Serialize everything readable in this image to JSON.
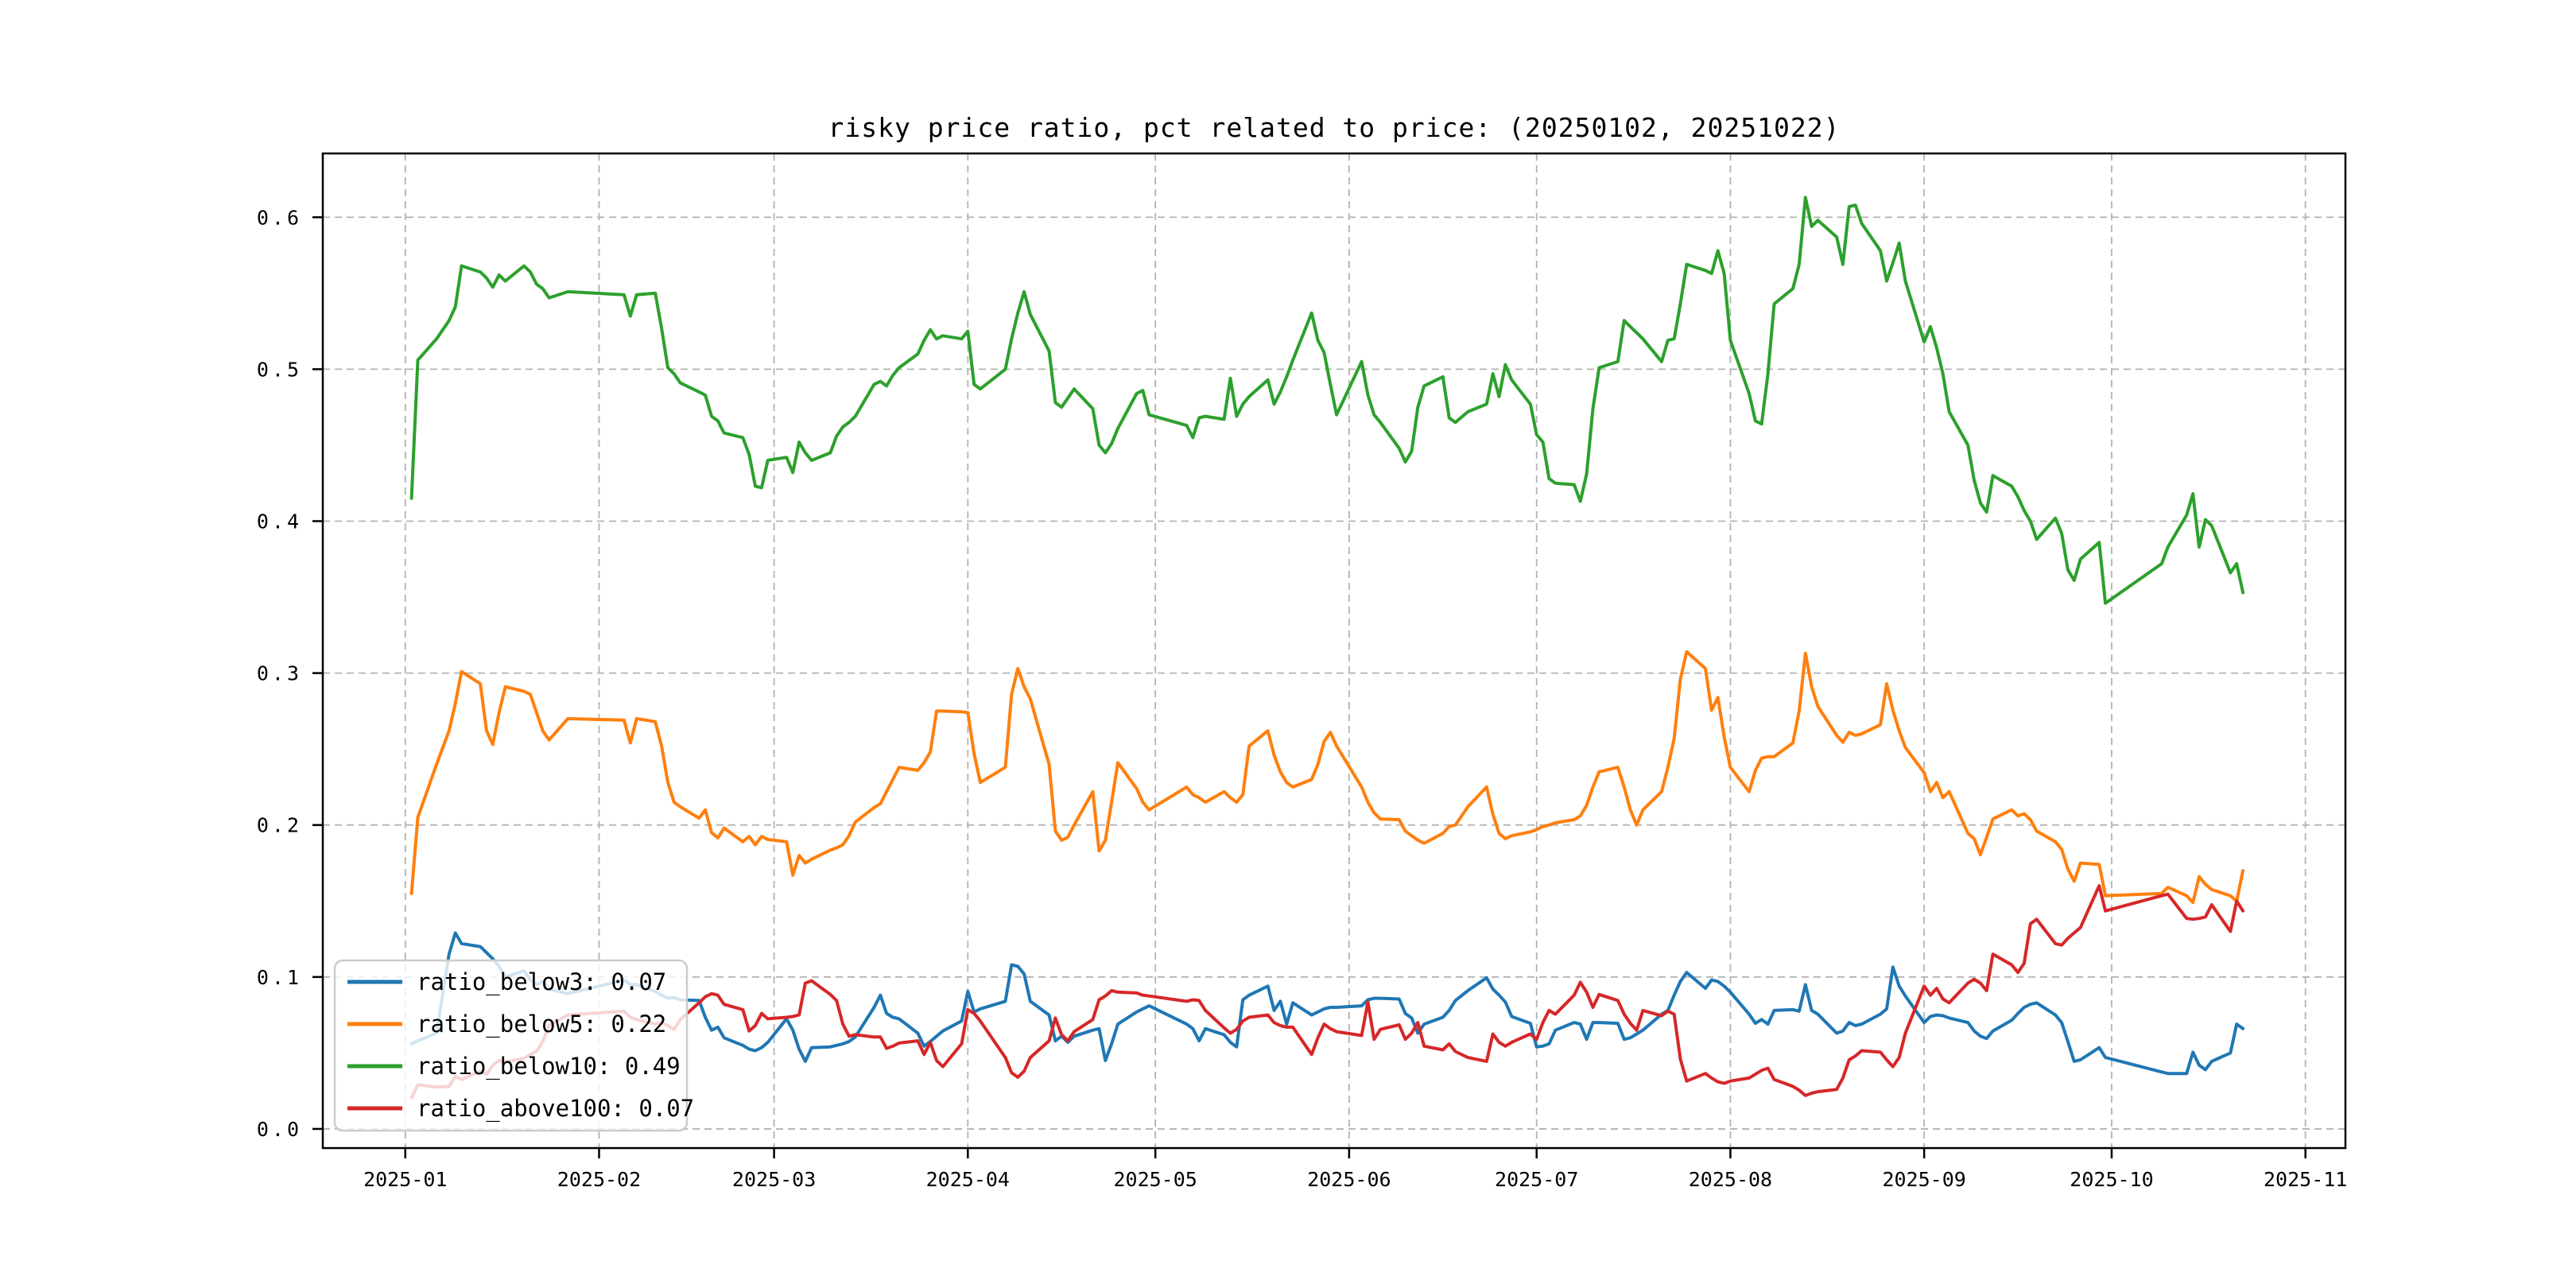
{
  "chart_data": {
    "type": "line",
    "title": "risky price ratio, pct related to price: (20250102, 20251022)",
    "xlabel": "",
    "ylabel": "",
    "grid": true,
    "grid_style": "dashed",
    "legend_position": "lower left",
    "colors": {
      "blue": "#1f77b4",
      "orange": "#ff7f0e",
      "green": "#2ca02c",
      "red": "#d62728",
      "grid": "#b3b3b3",
      "spine": "#000000",
      "legend_border": "#cccccc"
    },
    "x_tick_labels": [
      "2025-01",
      "2025-02",
      "2025-03",
      "2025-04",
      "2025-05",
      "2025-06",
      "2025-07",
      "2025-08",
      "2025-09",
      "2025-10",
      "2025-11"
    ],
    "x_tick_day_offsets": [
      0,
      31,
      59,
      90,
      120,
      151,
      181,
      212,
      243,
      273,
      304
    ],
    "y_tick_labels": [
      "0.0",
      "0.1",
      "0.2",
      "0.3",
      "0.4",
      "0.5",
      "0.6"
    ],
    "y_tick_values": [
      0.0,
      0.1,
      0.2,
      0.3,
      0.4,
      0.5,
      0.6
    ],
    "xlim_day_offsets": [
      -13.2,
      310.4
    ],
    "ylim": [
      -0.0126,
      0.642
    ],
    "x": [
      "01-02",
      "01-03",
      "01-06",
      "01-08",
      "01-09",
      "01-10",
      "01-13",
      "01-14",
      "01-15",
      "01-16",
      "01-17",
      "01-20",
      "01-21",
      "01-22",
      "01-23",
      "01-24",
      "01-27",
      "02-05",
      "02-06",
      "02-07",
      "02-10",
      "02-11",
      "02-12",
      "02-13",
      "02-14",
      "02-17",
      "02-18",
      "02-19",
      "02-20",
      "02-21",
      "02-24",
      "02-25",
      "02-26",
      "02-27",
      "02-28",
      "03-03",
      "03-04",
      "03-05",
      "03-06",
      "03-07",
      "03-10",
      "03-11",
      "03-12",
      "03-13",
      "03-14",
      "03-17",
      "03-18",
      "03-19",
      "03-20",
      "03-21",
      "03-24",
      "03-25",
      "03-26",
      "03-27",
      "03-28",
      "03-31",
      "04-01",
      "04-02",
      "04-03",
      "04-07",
      "04-08",
      "04-09",
      "04-10",
      "04-11",
      "04-14",
      "04-15",
      "04-16",
      "04-17",
      "04-18",
      "04-21",
      "04-22",
      "04-23",
      "04-24",
      "04-25",
      "04-28",
      "04-29",
      "04-30",
      "05-06",
      "05-07",
      "05-08",
      "05-09",
      "05-12",
      "05-13",
      "05-14",
      "05-15",
      "05-16",
      "05-19",
      "05-20",
      "05-21",
      "05-22",
      "05-23",
      "05-26",
      "05-27",
      "05-28",
      "05-29",
      "05-30",
      "06-03",
      "06-04",
      "06-05",
      "06-06",
      "06-09",
      "06-10",
      "06-11",
      "06-12",
      "06-13",
      "06-16",
      "06-17",
      "06-18",
      "06-20",
      "06-23",
      "06-24",
      "06-25",
      "06-26",
      "06-27",
      "06-30",
      "07-01",
      "07-02",
      "07-03",
      "07-04",
      "07-07",
      "07-08",
      "07-09",
      "07-10",
      "07-11",
      "07-14",
      "07-15",
      "07-16",
      "07-17",
      "07-18",
      "07-21",
      "07-22",
      "07-23",
      "07-24",
      "07-25",
      "07-28",
      "07-29",
      "07-30",
      "07-31",
      "08-01",
      "08-04",
      "08-05",
      "08-06",
      "08-07",
      "08-08",
      "08-11",
      "08-12",
      "08-13",
      "08-14",
      "08-15",
      "08-18",
      "08-19",
      "08-20",
      "08-21",
      "08-22",
      "08-25",
      "08-26",
      "08-27",
      "08-28",
      "08-29",
      "09-01",
      "09-02",
      "09-03",
      "09-04",
      "09-05",
      "09-08",
      "09-09",
      "09-10",
      "09-11",
      "09-12",
      "09-15",
      "09-16",
      "09-17",
      "09-18",
      "09-19",
      "09-22",
      "09-23",
      "09-24",
      "09-25",
      "09-26",
      "09-29",
      "09-30",
      "10-09",
      "10-10",
      "10-13",
      "10-14",
      "10-15",
      "10-16",
      "10-17",
      "10-20",
      "10-21",
      "10-22"
    ],
    "series": [
      {
        "name": "ratio_below3",
        "legend_label": "ratio_below3: 0.07",
        "color_key": "blue",
        "values": [
          0.056,
          0.058,
          0.063,
          0.115,
          0.129,
          0.122,
          0.12,
          0.116,
          0.112,
          0.107,
          0.1,
          0.104,
          0.098,
          0.095,
          0.097,
          0.092,
          0.089,
          0.098,
          0.095,
          0.095,
          0.0905,
          0.088,
          0.086,
          0.0865,
          0.085,
          0.0845,
          0.0735,
          0.065,
          0.067,
          0.06,
          0.055,
          0.0525,
          0.0515,
          0.0535,
          0.057,
          0.0725,
          0.065,
          0.0525,
          0.0445,
          0.0535,
          0.054,
          0.055,
          0.056,
          0.0575,
          0.0605,
          0.08,
          0.088,
          0.076,
          0.0735,
          0.0725,
          0.063,
          0.0545,
          0.0575,
          0.061,
          0.0645,
          0.071,
          0.0905,
          0.077,
          0.079,
          0.084,
          0.108,
          0.107,
          0.102,
          0.084,
          0.075,
          0.058,
          0.061,
          0.057,
          0.061,
          0.065,
          0.066,
          0.045,
          0.056,
          0.069,
          0.077,
          0.079,
          0.081,
          0.069,
          0.066,
          0.058,
          0.066,
          0.062,
          0.057,
          0.054,
          0.085,
          0.088,
          0.094,
          0.078,
          0.084,
          0.069,
          0.083,
          0.075,
          0.077,
          0.079,
          0.08,
          0.08,
          0.081,
          0.085,
          0.086,
          0.086,
          0.0855,
          0.076,
          0.073,
          0.063,
          0.069,
          0.0735,
          0.078,
          0.0845,
          0.091,
          0.0995,
          0.092,
          0.088,
          0.0835,
          0.074,
          0.0695,
          0.054,
          0.0545,
          0.056,
          0.065,
          0.07,
          0.069,
          0.059,
          0.07,
          0.07,
          0.0695,
          0.059,
          0.06,
          0.0625,
          0.065,
          0.0755,
          0.078,
          0.088,
          0.097,
          0.103,
          0.0925,
          0.098,
          0.097,
          0.094,
          0.09,
          0.0755,
          0.0695,
          0.072,
          0.069,
          0.078,
          0.0785,
          0.0775,
          0.095,
          0.078,
          0.0755,
          0.063,
          0.0645,
          0.07,
          0.068,
          0.069,
          0.0755,
          0.079,
          0.1065,
          0.094,
          0.0875,
          0.07,
          0.074,
          0.075,
          0.0745,
          0.073,
          0.07,
          0.0645,
          0.061,
          0.0595,
          0.0645,
          0.0715,
          0.076,
          0.08,
          0.082,
          0.083,
          0.075,
          0.07,
          0.0575,
          0.0445,
          0.0455,
          0.0535,
          0.047,
          0.0375,
          0.0365,
          0.0365,
          0.0505,
          0.042,
          0.039,
          0.0445,
          0.05,
          0.069,
          0.066
        ]
      },
      {
        "name": "ratio_below5",
        "legend_label": "ratio_below5: 0.22",
        "color_key": "orange",
        "values": [
          0.155,
          0.205,
          0.24,
          0.262,
          0.28,
          0.301,
          0.293,
          0.262,
          0.253,
          0.274,
          0.291,
          0.288,
          0.286,
          0.274,
          0.262,
          0.256,
          0.27,
          0.269,
          0.254,
          0.27,
          0.268,
          0.252,
          0.228,
          0.215,
          0.212,
          0.2045,
          0.21,
          0.195,
          0.1915,
          0.198,
          0.189,
          0.1925,
          0.187,
          0.1925,
          0.1905,
          0.189,
          0.167,
          0.18,
          0.175,
          0.1775,
          0.1835,
          0.185,
          0.187,
          0.193,
          0.202,
          0.2115,
          0.214,
          0.222,
          0.23,
          0.238,
          0.236,
          0.241,
          0.248,
          0.275,
          0.275,
          0.2745,
          0.274,
          0.247,
          0.228,
          0.238,
          0.286,
          0.303,
          0.291,
          0.283,
          0.24,
          0.196,
          0.19,
          0.192,
          0.2,
          0.222,
          0.183,
          0.19,
          0.215,
          0.241,
          0.224,
          0.215,
          0.21,
          0.225,
          0.22,
          0.218,
          0.215,
          0.222,
          0.218,
          0.215,
          0.22,
          0.252,
          0.262,
          0.246,
          0.235,
          0.228,
          0.225,
          0.23,
          0.24,
          0.255,
          0.261,
          0.252,
          0.225,
          0.215,
          0.208,
          0.204,
          0.2035,
          0.196,
          0.193,
          0.19,
          0.188,
          0.1945,
          0.199,
          0.2,
          0.212,
          0.225,
          0.207,
          0.1945,
          0.191,
          0.193,
          0.1955,
          0.197,
          0.199,
          0.2,
          0.2015,
          0.2035,
          0.206,
          0.213,
          0.225,
          0.235,
          0.238,
          0.225,
          0.21,
          0.2,
          0.21,
          0.222,
          0.238,
          0.257,
          0.296,
          0.314,
          0.303,
          0.2755,
          0.284,
          0.258,
          0.238,
          0.222,
          0.236,
          0.244,
          0.245,
          0.245,
          0.254,
          0.275,
          0.313,
          0.291,
          0.278,
          0.259,
          0.2545,
          0.261,
          0.259,
          0.26,
          0.266,
          0.293,
          0.2755,
          0.262,
          0.251,
          0.2345,
          0.222,
          0.228,
          0.218,
          0.222,
          0.1945,
          0.191,
          0.1805,
          0.192,
          0.204,
          0.21,
          0.206,
          0.2075,
          0.2035,
          0.196,
          0.189,
          0.184,
          0.171,
          0.163,
          0.175,
          0.174,
          0.1535,
          0.155,
          0.159,
          0.1535,
          0.149,
          0.166,
          0.161,
          0.1575,
          0.1535,
          0.15,
          0.17
        ]
      },
      {
        "name": "ratio_below10",
        "legend_label": "ratio_below10: 0.49",
        "color_key": "green",
        "values": [
          0.415,
          0.506,
          0.52,
          0.532,
          0.541,
          0.568,
          0.564,
          0.56,
          0.554,
          0.562,
          0.558,
          0.568,
          0.564,
          0.556,
          0.553,
          0.547,
          0.551,
          0.549,
          0.535,
          0.549,
          0.55,
          0.527,
          0.501,
          0.497,
          0.491,
          0.485,
          0.483,
          0.469,
          0.466,
          0.458,
          0.455,
          0.444,
          0.423,
          0.422,
          0.44,
          0.442,
          0.432,
          0.452,
          0.445,
          0.44,
          0.445,
          0.456,
          0.462,
          0.465,
          0.469,
          0.49,
          0.492,
          0.489,
          0.496,
          0.501,
          0.51,
          0.519,
          0.526,
          0.52,
          0.522,
          0.52,
          0.525,
          0.49,
          0.487,
          0.5,
          0.52,
          0.537,
          0.551,
          0.536,
          0.512,
          0.478,
          0.475,
          0.481,
          0.487,
          0.474,
          0.45,
          0.445,
          0.451,
          0.461,
          0.484,
          0.486,
          0.47,
          0.463,
          0.455,
          0.468,
          0.469,
          0.467,
          0.494,
          0.469,
          0.477,
          0.482,
          0.493,
          0.477,
          0.485,
          0.495,
          0.506,
          0.537,
          0.519,
          0.511,
          0.49,
          0.47,
          0.505,
          0.483,
          0.47,
          0.465,
          0.448,
          0.439,
          0.446,
          0.475,
          0.489,
          0.495,
          0.468,
          0.465,
          0.472,
          0.477,
          0.497,
          0.482,
          0.503,
          0.493,
          0.477,
          0.457,
          0.452,
          0.428,
          0.425,
          0.424,
          0.413,
          0.431,
          0.474,
          0.501,
          0.505,
          0.532,
          0.528,
          0.524,
          0.52,
          0.505,
          0.519,
          0.52,
          0.543,
          0.569,
          0.565,
          0.563,
          0.578,
          0.563,
          0.519,
          0.484,
          0.466,
          0.464,
          0.497,
          0.543,
          0.553,
          0.569,
          0.613,
          0.594,
          0.598,
          0.587,
          0.569,
          0.607,
          0.608,
          0.596,
          0.578,
          0.558,
          0.57,
          0.583,
          0.558,
          0.518,
          0.528,
          0.514,
          0.497,
          0.472,
          0.45,
          0.427,
          0.412,
          0.406,
          0.43,
          0.423,
          0.416,
          0.407,
          0.4,
          0.388,
          0.402,
          0.392,
          0.368,
          0.361,
          0.375,
          0.386,
          0.346,
          0.372,
          0.383,
          0.404,
          0.418,
          0.383,
          0.401,
          0.397,
          0.366,
          0.372,
          0.353
        ]
      },
      {
        "name": "ratio_above100",
        "legend_label": "ratio_above100: 0.07",
        "color_key": "red",
        "values": [
          0.0205,
          0.029,
          0.0275,
          0.028,
          0.0345,
          0.0325,
          0.038,
          0.036,
          0.042,
          0.045,
          0.044,
          0.0465,
          0.049,
          0.051,
          0.0575,
          0.068,
          0.075,
          0.0775,
          0.0735,
          0.072,
          0.069,
          0.07,
          0.068,
          0.0655,
          0.072,
          0.083,
          0.087,
          0.089,
          0.088,
          0.082,
          0.0785,
          0.0645,
          0.068,
          0.076,
          0.0725,
          0.0735,
          0.074,
          0.075,
          0.096,
          0.0975,
          0.0885,
          0.0845,
          0.069,
          0.061,
          0.062,
          0.0605,
          0.0605,
          0.053,
          0.0545,
          0.0565,
          0.058,
          0.049,
          0.057,
          0.045,
          0.041,
          0.056,
          0.0785,
          0.076,
          0.071,
          0.047,
          0.037,
          0.034,
          0.038,
          0.047,
          0.058,
          0.073,
          0.062,
          0.058,
          0.064,
          0.072,
          0.085,
          0.0875,
          0.091,
          0.09,
          0.0895,
          0.088,
          0.0875,
          0.084,
          0.085,
          0.0845,
          0.078,
          0.0665,
          0.063,
          0.0655,
          0.071,
          0.0735,
          0.075,
          0.07,
          0.068,
          0.067,
          0.067,
          0.049,
          0.06,
          0.069,
          0.066,
          0.064,
          0.0615,
          0.0835,
          0.059,
          0.0655,
          0.0685,
          0.059,
          0.063,
          0.07,
          0.0545,
          0.052,
          0.056,
          0.051,
          0.047,
          0.0445,
          0.0625,
          0.057,
          0.0545,
          0.057,
          0.0625,
          0.059,
          0.07,
          0.078,
          0.0755,
          0.088,
          0.0965,
          0.09,
          0.08,
          0.0885,
          0.0845,
          0.0755,
          0.0695,
          0.065,
          0.078,
          0.0745,
          0.0775,
          0.0755,
          0.046,
          0.0315,
          0.0365,
          0.0335,
          0.031,
          0.03,
          0.0315,
          0.0335,
          0.036,
          0.0385,
          0.04,
          0.0325,
          0.028,
          0.0255,
          0.022,
          0.0235,
          0.0245,
          0.026,
          0.0335,
          0.0455,
          0.048,
          0.0515,
          0.0505,
          0.0455,
          0.041,
          0.047,
          0.063,
          0.094,
          0.088,
          0.0925,
          0.0855,
          0.083,
          0.096,
          0.0985,
          0.096,
          0.091,
          0.115,
          0.108,
          0.103,
          0.109,
          0.135,
          0.138,
          0.122,
          0.121,
          0.1255,
          0.129,
          0.1325,
          0.16,
          0.1435,
          0.1535,
          0.1545,
          0.1385,
          0.138,
          0.1385,
          0.1395,
          0.1475,
          0.13,
          0.15,
          0.1435
        ]
      }
    ]
  }
}
